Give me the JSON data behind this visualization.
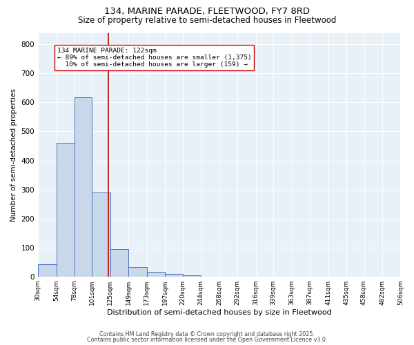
{
  "title1": "134, MARINE PARADE, FLEETWOOD, FY7 8RD",
  "title2": "Size of property relative to semi-detached houses in Fleetwood",
  "xlabel": "Distribution of semi-detached houses by size in Fleetwood",
  "ylabel": "Number of semi-detached properties",
  "bins": [
    30,
    54,
    78,
    101,
    125,
    149,
    173,
    197,
    220,
    244,
    268,
    292,
    316,
    339,
    363,
    387,
    411,
    435,
    458,
    482,
    506
  ],
  "counts": [
    42,
    460,
    617,
    290,
    94,
    33,
    15,
    8,
    5,
    0,
    0,
    0,
    0,
    0,
    0,
    0,
    0,
    0,
    0,
    0
  ],
  "bar_facecolor": "#c8d8e8",
  "bar_edgecolor": "#4472c4",
  "vline_x": 122,
  "vline_color": "#cc0000",
  "annotation_text": "134 MARINE PARADE: 122sqm\n← 89% of semi-detached houses are smaller (1,375)\n  10% of semi-detached houses are larger (159) →",
  "annotation_box_edgecolor": "#cc0000",
  "annotation_box_facecolor": "white",
  "ylim": [
    0,
    840
  ],
  "yticks": [
    0,
    100,
    200,
    300,
    400,
    500,
    600,
    700,
    800
  ],
  "tick_labels": [
    "30sqm",
    "54sqm",
    "78sqm",
    "101sqm",
    "125sqm",
    "149sqm",
    "173sqm",
    "197sqm",
    "220sqm",
    "244sqm",
    "268sqm",
    "292sqm",
    "316sqm",
    "339sqm",
    "363sqm",
    "387sqm",
    "411sqm",
    "435sqm",
    "458sqm",
    "482sqm",
    "506sqm"
  ],
  "footer1": "Contains HM Land Registry data © Crown copyright and database right 2025.",
  "footer2": "Contains public sector information licensed under the Open Government Licence v3.0.",
  "background_color": "#e8f0f8",
  "grid_color": "#ffffff",
  "title1_fontsize": 9.5,
  "title2_fontsize": 8.5,
  "annotation_fontsize": 6.8,
  "ylabel_fontsize": 7.5,
  "xlabel_fontsize": 8,
  "ytick_fontsize": 7.5,
  "xtick_fontsize": 6.5,
  "footer_fontsize": 5.8
}
